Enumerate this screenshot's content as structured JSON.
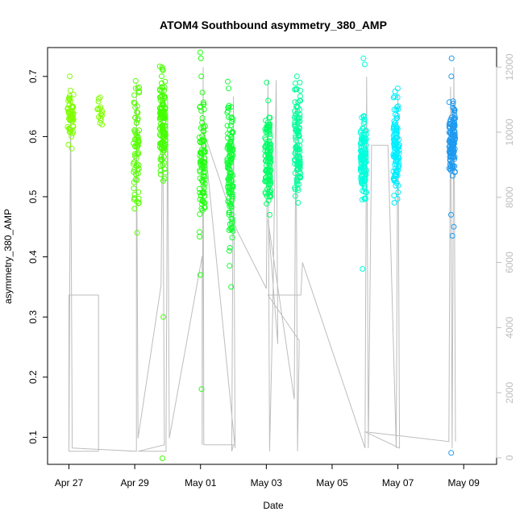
{
  "chart_data": {
    "type": "scatter",
    "title": "ATOM4 Southbound asymmetry_380_AMP",
    "xlabel": "Date",
    "ylabel": "asymmetry_380_AMP",
    "x_tick_labels": [
      "Apr 27",
      "Apr 29",
      "May 01",
      "May 03",
      "May 05",
      "May 07",
      "May 09"
    ],
    "x_tick_values": [
      0,
      2,
      4,
      6,
      8,
      10,
      12
    ],
    "x_range_days": [
      -0.65,
      13.0
    ],
    "y_ticks": [
      0.1,
      0.2,
      0.3,
      0.4,
      0.5,
      0.6,
      0.7
    ],
    "ylim": [
      0.055,
      0.748
    ],
    "y2_ticks": [
      0,
      2000,
      4000,
      6000,
      8000,
      10000,
      12000
    ],
    "y2lim": [
      -200,
      12600
    ],
    "grid": false,
    "series": [
      {
        "type": "points",
        "clusters": [
          {
            "x": 0.05,
            "y_center": 0.635,
            "y_spread": 0.03,
            "outliers": [
              0.7,
              0.58,
              0.6
            ],
            "n": 60,
            "color": "#80ff00"
          },
          {
            "x": 0.95,
            "y_center": 0.64,
            "y_spread": 0.015,
            "outliers": [
              0.665,
              0.62
            ],
            "n": 14,
            "color": "#80ff00"
          },
          {
            "x": 2.05,
            "y_center": 0.59,
            "y_spread": 0.07,
            "outliers": [
              0.44,
              0.48,
              0.68
            ],
            "n": 70,
            "color": "#55ff00"
          },
          {
            "x": 2.85,
            "y_center": 0.62,
            "y_spread": 0.05,
            "outliers": [
              0.065,
              0.3,
              0.53,
              0.71,
              0.715
            ],
            "n": 130,
            "color": "#44ff00"
          },
          {
            "x": 4.05,
            "y_center": 0.56,
            "y_spread": 0.07,
            "outliers": [
              0.18,
              0.37,
              0.74,
              0.73,
              0.7
            ],
            "n": 90,
            "color": "#22ff11"
          },
          {
            "x": 4.9,
            "y_center": 0.55,
            "y_spread": 0.08,
            "outliers": [
              0.35,
              0.385,
              0.41,
              0.68
            ],
            "n": 130,
            "color": "#11ff33"
          },
          {
            "x": 6.05,
            "y_center": 0.56,
            "y_spread": 0.05,
            "outliers": [
              0.47,
              0.69,
              0.66
            ],
            "n": 120,
            "color": "#00ff66"
          },
          {
            "x": 6.95,
            "y_center": 0.58,
            "y_spread": 0.07,
            "outliers": [
              0.49,
              0.7
            ],
            "n": 110,
            "color": "#00ff99"
          },
          {
            "x": 8.95,
            "y_center": 0.565,
            "y_spread": 0.045,
            "outliers": [
              0.38,
              0.72,
              0.73
            ],
            "n": 130,
            "color": "#00ffdd"
          },
          {
            "x": 9.95,
            "y_center": 0.58,
            "y_spread": 0.05,
            "outliers": [
              0.49,
              0.68,
              0.675
            ],
            "n": 110,
            "color": "#00eeff"
          },
          {
            "x": 11.65,
            "y_center": 0.595,
            "y_spread": 0.04,
            "outliers": [
              0.074,
              0.435,
              0.45,
              0.47,
              0.7,
              0.73
            ],
            "n": 130,
            "color": "#1e9af0"
          }
        ]
      },
      {
        "type": "line",
        "axis": "right",
        "color": "#bdbdbd",
        "points": [
          [
            0.0,
            300
          ],
          [
            0.0,
            5000
          ],
          [
            0.9,
            5000
          ],
          [
            0.9,
            200
          ],
          [
            0.0,
            200
          ],
          [
            0.05,
            11000
          ],
          [
            0.1,
            300
          ],
          [
            2.05,
            200
          ],
          [
            2.05,
            11500
          ],
          [
            2.1,
            600
          ],
          [
            2.8,
            5300
          ],
          [
            2.85,
            11100
          ],
          [
            2.9,
            400
          ],
          [
            2.1,
            200
          ],
          [
            2.95,
            200
          ],
          [
            3.0,
            11000
          ],
          [
            3.05,
            600
          ],
          [
            4.05,
            6200
          ],
          [
            4.05,
            400
          ],
          [
            4.08,
            12000
          ],
          [
            4.1,
            400
          ],
          [
            5.0,
            400
          ],
          [
            4.95,
            200
          ],
          [
            5.0,
            11100
          ],
          [
            5.05,
            300
          ],
          [
            4.1,
            10000
          ],
          [
            5.1,
            7000
          ],
          [
            6.0,
            5200
          ],
          [
            6.05,
            11600
          ],
          [
            6.1,
            200
          ],
          [
            6.2,
            4700
          ],
          [
            6.3,
            11600
          ],
          [
            6.35,
            3500
          ],
          [
            6.05,
            7300
          ],
          [
            6.85,
            1800
          ],
          [
            6.9,
            11000
          ],
          [
            6.95,
            200
          ],
          [
            7.0,
            3600
          ],
          [
            6.05,
            5000
          ],
          [
            7.05,
            5000
          ],
          [
            7.1,
            6000
          ],
          [
            9.0,
            300
          ],
          [
            9.05,
            11700
          ],
          [
            9.1,
            300
          ],
          [
            9.2,
            9600
          ],
          [
            9.7,
            9600
          ],
          [
            9.95,
            300
          ],
          [
            10.0,
            11200
          ],
          [
            10.05,
            300
          ],
          [
            9.0,
            800
          ],
          [
            11.55,
            500
          ],
          [
            11.6,
            11400
          ],
          [
            11.65,
            300
          ],
          [
            11.7,
            12000
          ],
          [
            11.75,
            500
          ]
        ]
      }
    ]
  }
}
